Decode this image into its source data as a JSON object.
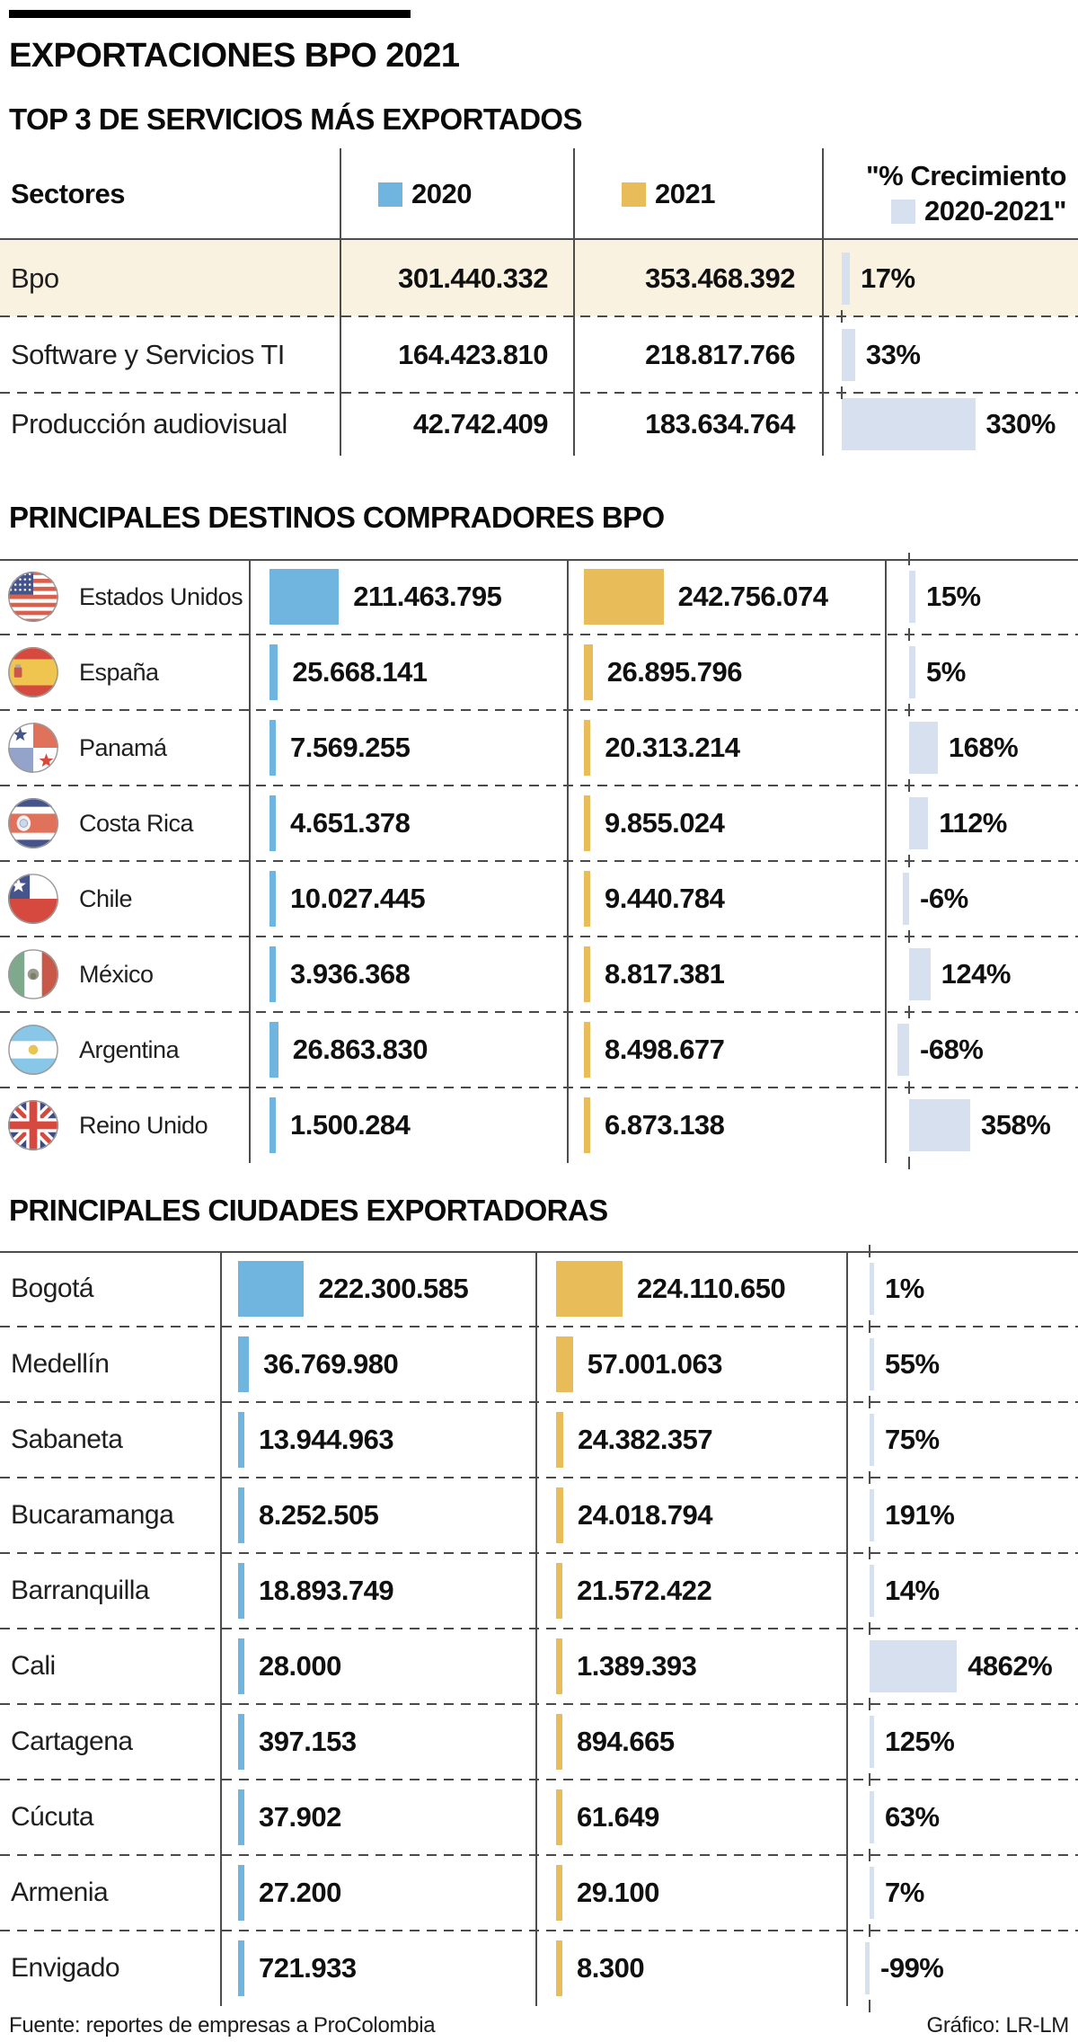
{
  "title": "EXPORTACIONES BPO 2021",
  "legend": {
    "y2020": "2020",
    "y2021": "2021",
    "growth_line1": "\"% Crecimiento",
    "growth_line2": "2020-2021\""
  },
  "footer": {
    "source": "Fuente: reportes de empresas a ProColombia",
    "credit": "Gráfico: LR-LM"
  },
  "colors": {
    "bar_2020": "#6FB5E0",
    "bar_2021": "#E8BC58",
    "bar_growth": "#D7E0EF",
    "row_highlight": "#FAF2E1",
    "accent": "#000000"
  },
  "chart_data": [
    {
      "type": "bar",
      "orientation": "horizontal",
      "section_title": "TOP 3 DE SERVICIOS MÁS EXPORTADOS",
      "row_header_label": "Sectores",
      "series_names": [
        "2020",
        "2021",
        "% Crecimiento 2020-2021"
      ],
      "rows": [
        {
          "category": "Bpo",
          "y2020": 301440332,
          "y2020_label": "301.440.332",
          "y2021": 353468392,
          "y2021_label": "353.468.392",
          "growth_pct": 17,
          "growth_label": "17%",
          "highlight": true
        },
        {
          "category": "Software y Servicios TI",
          "y2020": 164423810,
          "y2020_label": "164.423.810",
          "y2021": 218817766,
          "y2021_label": "218.817.766",
          "growth_pct": 33,
          "growth_label": "33%",
          "highlight": false
        },
        {
          "category": "Producción audiovisual",
          "y2020": 42742409,
          "y2020_label": "42.742.409",
          "y2021": 183634764,
          "y2021_label": "183.634.764",
          "growth_pct": 330,
          "growth_label": "330%",
          "highlight": false
        }
      ]
    },
    {
      "type": "bar",
      "orientation": "horizontal",
      "section_title": "PRINCIPALES DESTINOS COMPRADORES BPO",
      "series_names": [
        "2020",
        "2021",
        "% Crecimiento 2020-2021"
      ],
      "rows": [
        {
          "category": "Estados Unidos",
          "flag": "estados-unidos",
          "y2020": 211463795,
          "y2020_label": "211.463.795",
          "y2021": 242756074,
          "y2021_label": "242.756.074",
          "growth_pct": 15,
          "growth_label": "15%",
          "highlight": false
        },
        {
          "category": "España",
          "flag": "espana",
          "y2020": 25668141,
          "y2020_label": "25.668.141",
          "y2021": 26895796,
          "y2021_label": "26.895.796",
          "growth_pct": 5,
          "growth_label": "5%",
          "highlight": false
        },
        {
          "category": "Panamá",
          "flag": "panama",
          "y2020": 7569255,
          "y2020_label": "7.569.255",
          "y2021": 20313214,
          "y2021_label": "20.313.214",
          "growth_pct": 168,
          "growth_label": "168%",
          "highlight": false
        },
        {
          "category": "Costa Rica",
          "flag": "costa-rica",
          "y2020": 4651378,
          "y2020_label": "4.651.378",
          "y2021": 9855024,
          "y2021_label": "9.855.024",
          "growth_pct": 112,
          "growth_label": "112%",
          "highlight": false
        },
        {
          "category": "Chile",
          "flag": "chile",
          "y2020": 10027445,
          "y2020_label": "10.027.445",
          "y2021": 9440784,
          "y2021_label": "9.440.784",
          "growth_pct": -6,
          "growth_label": "-6%",
          "highlight": false
        },
        {
          "category": "México",
          "flag": "mexico",
          "y2020": 3936368,
          "y2020_label": "3.936.368",
          "y2021": 8817381,
          "y2021_label": "8.817.381",
          "growth_pct": 124,
          "growth_label": "124%",
          "highlight": false
        },
        {
          "category": "Argentina",
          "flag": "argentina",
          "y2020": 26863830,
          "y2020_label": "26.863.830",
          "y2021": 8498677,
          "y2021_label": "8.498.677",
          "growth_pct": -68,
          "growth_label": "-68%",
          "highlight": false
        },
        {
          "category": "Reino Unido",
          "flag": "reino-unido",
          "y2020": 1500284,
          "y2020_label": "1.500.284",
          "y2021": 6873138,
          "y2021_label": "6.873.138",
          "growth_pct": 358,
          "growth_label": "358%",
          "highlight": false
        }
      ]
    },
    {
      "type": "bar",
      "orientation": "horizontal",
      "section_title": "PRINCIPALES CIUDADES EXPORTADORAS",
      "series_names": [
        "2020",
        "2021",
        "% Crecimiento 2020-2021"
      ],
      "rows": [
        {
          "category": "Bogotá",
          "y2020": 222300585,
          "y2020_label": "222.300.585",
          "y2021": 224110650,
          "y2021_label": "224.110.650",
          "growth_pct": 1,
          "growth_label": "1%",
          "highlight": false
        },
        {
          "category": "Medellín",
          "y2020": 36769980,
          "y2020_label": "36.769.980",
          "y2021": 57001063,
          "y2021_label": "57.001.063",
          "growth_pct": 55,
          "growth_label": "55%",
          "highlight": false
        },
        {
          "category": "Sabaneta",
          "y2020": 13944963,
          "y2020_label": "13.944.963",
          "y2021": 24382357,
          "y2021_label": "24.382.357",
          "growth_pct": 75,
          "growth_label": "75%",
          "highlight": false
        },
        {
          "category": "Bucaramanga",
          "y2020": 8252505,
          "y2020_label": "8.252.505",
          "y2021": 24018794,
          "y2021_label": "24.018.794",
          "growth_pct": 191,
          "growth_label": "191%",
          "highlight": false
        },
        {
          "category": "Barranquilla",
          "y2020": 18893749,
          "y2020_label": "18.893.749",
          "y2021": 21572422,
          "y2021_label": "21.572.422",
          "growth_pct": 14,
          "growth_label": "14%",
          "highlight": false
        },
        {
          "category": "Cali",
          "y2020": 28000,
          "y2020_label": "28.000",
          "y2021": 1389393,
          "y2021_label": "1.389.393",
          "growth_pct": 4862,
          "growth_label": "4862%",
          "highlight": false
        },
        {
          "category": "Cartagena",
          "y2020": 397153,
          "y2020_label": "397.153",
          "y2021": 894665,
          "y2021_label": "894.665",
          "growth_pct": 125,
          "growth_label": "125%",
          "highlight": false
        },
        {
          "category": "Cúcuta",
          "y2020": 37902,
          "y2020_label": "37.902",
          "y2021": 61649,
          "y2021_label": "61.649",
          "growth_pct": 63,
          "growth_label": "63%",
          "highlight": false
        },
        {
          "category": "Armenia",
          "y2020": 27200,
          "y2020_label": "27.200",
          "y2021": 29100,
          "y2021_label": "29.100",
          "growth_pct": 7,
          "growth_label": "7%",
          "highlight": false
        },
        {
          "category": "Envigado",
          "y2020": 721933,
          "y2020_label": "721.933",
          "y2021": 8300,
          "y2021_label": "8.300",
          "growth_pct": -99,
          "growth_label": "-99%",
          "highlight": false
        }
      ]
    }
  ]
}
